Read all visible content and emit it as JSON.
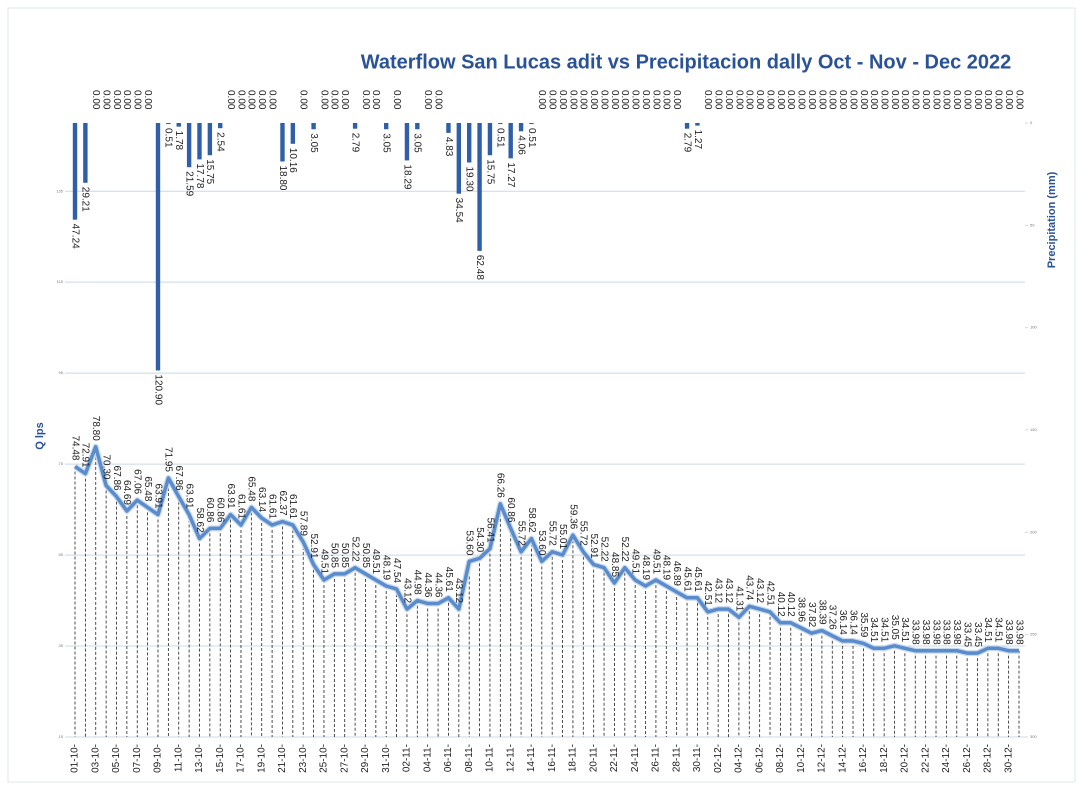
{
  "chart_data": {
    "type": "combo",
    "title": "Waterflow San Lucas adit  vs Precipitacion dally Oct - Nov - Dec 2022",
    "y_label": "Q  lps",
    "y2_label": "Precipitation (mm)",
    "categories": [
      "01-10-",
      null,
      "03-10-",
      null,
      "05-10-",
      null,
      "07-10-",
      null,
      "09-10-",
      null,
      "11-10-",
      null,
      "13-10-",
      null,
      "15-10-",
      null,
      "17-10-",
      null,
      "19-10-",
      null,
      "21-10-",
      null,
      "23-10-",
      null,
      "25-10-",
      null,
      "27-10-",
      null,
      "29-10-",
      null,
      "31-10-",
      null,
      "02-11-",
      null,
      "04-11-",
      null,
      "06-11-",
      null,
      "08-11-",
      null,
      "10-11-",
      null,
      "12-11-",
      null,
      "14-11-",
      null,
      "16-11-",
      null,
      "18-11-",
      null,
      "20-11-",
      null,
      "22-11-",
      null,
      "24-11-",
      null,
      "26-11-",
      null,
      "28-11-",
      null,
      "30-11-",
      null,
      "02-12-",
      null,
      "04-12-",
      null,
      "06-12-",
      null,
      "08-12-",
      null,
      "10-12-",
      null,
      "12-12-",
      null,
      "14-12-",
      null,
      "16-12-",
      null,
      "18-12-",
      null,
      "20-12-",
      null,
      "22-12-",
      null,
      "24-12-",
      null,
      "26-12-",
      null,
      "28-12-",
      null,
      "30-12-",
      null
    ],
    "series": [
      {
        "type": "bar",
        "axis": "y2",
        "color": "#2f5fa8",
        "values": [
          47.24,
          29.21,
          0,
          0,
          0,
          0,
          0,
          0,
          120.9,
          0.51,
          1.78,
          21.59,
          17.78,
          15.75,
          2.54,
          0,
          0,
          0,
          0,
          0,
          18.8,
          10.16,
          0,
          3.05,
          0,
          0,
          0,
          2.79,
          0,
          0,
          3.05,
          0,
          18.29,
          3.05,
          0,
          0,
          4.83,
          34.54,
          19.3,
          62.48,
          15.75,
          0.51,
          17.27,
          4.06,
          0.51,
          0,
          0,
          0,
          0,
          0,
          0,
          0,
          0,
          0,
          0,
          0,
          0,
          0,
          0,
          2.79,
          1.27,
          0,
          0,
          0,
          0,
          0,
          0,
          0,
          0,
          0,
          0,
          0,
          0,
          0,
          0,
          0,
          0,
          0,
          0,
          0,
          0,
          0,
          0,
          0,
          0,
          0,
          0,
          0,
          0,
          0,
          0,
          0
        ],
        "value_labels": [
          "47.24",
          "29.21",
          "0.00",
          "0.00",
          "0.00",
          "0.00",
          "0.00",
          "0.00",
          "120.90",
          "0.51",
          "1.78",
          "21.59",
          "17.78",
          "15.75",
          "2.54",
          "0.00",
          "0.00",
          "0.00",
          "0.00",
          "0.00",
          "18.80",
          "10.16",
          "0.00",
          "3.05",
          "0.00",
          "0.00",
          "0.00",
          "2.79",
          "0.00",
          "0.00",
          "3.05",
          "0.00",
          "18.29",
          "3.05",
          "0.00",
          "0.00",
          "4.83",
          "34.54",
          "19.30",
          "62.48",
          "15.75",
          "0.51",
          "17.27",
          "4.06",
          "0.51",
          "0.00",
          "0.00",
          "0.00",
          "0.00",
          "0.00",
          "0.00",
          "0.00",
          "0.00",
          "0.00",
          "0.00",
          "0.00",
          "0.00",
          "0.00",
          "0.00",
          "2.79",
          "1.27",
          "0.00",
          "0.00",
          "0.00",
          "0.00",
          "0.00",
          "0.00",
          "0.00",
          "0.00",
          "0.00",
          "0.00",
          "0.00",
          "0.00",
          "0.00",
          "0.00",
          "0.00",
          "0.00",
          "0.00",
          "0.00",
          "0.00",
          "0.00",
          "0.00",
          "0.00",
          "0.00",
          "0.00",
          "0.00",
          "0.00",
          "0.00",
          "0.00",
          "0.00",
          "0.00",
          "0.00"
        ]
      },
      {
        "type": "line",
        "axis": "y",
        "color": "#5a8ccc",
        "values": [
          74.48,
          72.91,
          78.8,
          70.3,
          67.86,
          64.69,
          67.06,
          65.48,
          63.91,
          71.95,
          67.86,
          63.91,
          58.62,
          60.86,
          60.86,
          63.91,
          61.61,
          65.48,
          63.14,
          61.61,
          62.37,
          61.61,
          57.89,
          52.91,
          49.51,
          50.85,
          50.85,
          52.22,
          50.85,
          49.51,
          48.19,
          47.54,
          43.12,
          44.98,
          44.36,
          44.36,
          45.61,
          43.12,
          53.6,
          54.3,
          56.41,
          66.26,
          60.86,
          55.72,
          58.62,
          53.6,
          55.72,
          55.01,
          59.36,
          55.72,
          52.91,
          52.22,
          48.85,
          52.22,
          49.51,
          48.19,
          49.51,
          48.19,
          46.89,
          45.61,
          45.61,
          42.51,
          43.12,
          43.12,
          41.31,
          43.74,
          43.12,
          42.51,
          40.12,
          40.12,
          38.96,
          37.82,
          38.39,
          37.26,
          36.14,
          36.14,
          35.59,
          34.51,
          34.51,
          35.05,
          34.51,
          33.98,
          33.98,
          33.98,
          33.98,
          33.98,
          33.45,
          33.45,
          34.51,
          34.51,
          33.98,
          33.98
        ],
        "value_labels": [
          "74.48",
          "72.91",
          "78.80",
          "70.30",
          "67.86",
          "64.69",
          "67.06",
          "65.48",
          "63.91",
          "71.95",
          "67.86",
          "63.91",
          "58.62",
          "60.86",
          "60.86",
          "63.91",
          "61.61",
          "65.48",
          "63.14",
          "61.61",
          "62.37",
          "61.61",
          "57.89",
          "52.91",
          "49.51",
          "50.85",
          "50.85",
          "52.22",
          "50.85",
          "49.51",
          "48.19",
          "47.54",
          "43.12",
          "44.98",
          "44.36",
          "44.36",
          "45.61",
          "43.12",
          "53.60",
          "54.30",
          "56.41",
          "66.26",
          "60.86",
          "55.72",
          "58.62",
          "53.60",
          "55.72",
          "55.01",
          "59.36",
          "55.72",
          "52.91",
          "52.22",
          "48.85",
          "52.22",
          "49.51",
          "48.19",
          "49.51",
          "48.19",
          "46.89",
          "45.61",
          "45.61",
          "42.51",
          "43.12",
          "43.12",
          "41.31",
          "43.74",
          "43.12",
          "42.51",
          "40.12",
          "40.12",
          "38.96",
          "37.82",
          "38.39",
          "37.26",
          "36.14",
          "36.14",
          "35.59",
          "34.51",
          "34.51",
          "35.05",
          "34.51",
          "33.98",
          "33.98",
          "33.98",
          "33.98",
          "33.98",
          "33.45",
          "33.45",
          "34.51",
          "34.51",
          "33.98",
          "33.98"
        ]
      }
    ],
    "ylim": [
      15,
      150
    ],
    "yticks": [
      15,
      35,
      55,
      75,
      95,
      115,
      135
    ],
    "y2lim": [
      0,
      300
    ],
    "y2ticks": [
      0,
      50,
      100,
      150,
      200,
      250,
      300
    ],
    "y2_inverted": true,
    "grid": true
  }
}
